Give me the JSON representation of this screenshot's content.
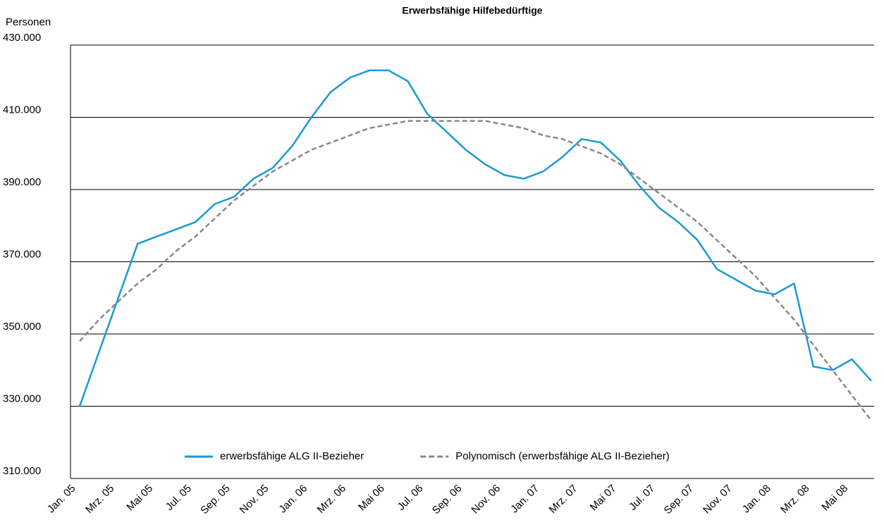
{
  "chart_data": {
    "type": "line",
    "title": "Erwerbsfähige Hilfebedürftige",
    "y_label": "Personen",
    "categories": [
      "Jan. 05",
      null,
      "Mrz. 05",
      null,
      "Mai 05",
      null,
      "Jul. 05",
      null,
      "Sep. 05",
      null,
      "Nov. 05",
      null,
      "Jan. 06",
      null,
      "Mrz. 06",
      null,
      "Mai 06",
      null,
      "Jul. 06",
      null,
      "Sep. 06",
      null,
      "Nov. 06",
      null,
      "Jan. 07",
      null,
      "Mrz. 07",
      null,
      "Mai 07",
      null,
      "Jul. 07",
      null,
      "Sep. 07",
      null,
      "Nov. 07",
      null,
      "Jan. 08",
      null,
      "Mrz. 08",
      null,
      "Mai 08",
      null
    ],
    "series": [
      {
        "name": "erwerbsfähige ALG II-Bezieher",
        "color": "#1a9ad6",
        "style": "solid",
        "values": [
          330000,
          345000,
          360000,
          375000,
          377000,
          379000,
          381000,
          386000,
          388000,
          393000,
          396000,
          402000,
          410000,
          417000,
          421000,
          423000,
          423000,
          420000,
          411000,
          406000,
          401000,
          397000,
          394000,
          393000,
          395000,
          399000,
          404000,
          403000,
          398000,
          391000,
          385000,
          381000,
          376000,
          368000,
          365000,
          362000,
          361000,
          364000,
          341000,
          340000,
          343000,
          337000
        ]
      },
      {
        "name": "Polynomisch (erwerbsfähige ALG II-Bezieher)",
        "color": "#888888",
        "style": "dashed",
        "values": [
          348000,
          354000,
          359000,
          364000,
          368000,
          373000,
          377000,
          382000,
          387000,
          391000,
          395000,
          398000,
          401000,
          403000,
          405000,
          407000,
          408000,
          409000,
          409000,
          409000,
          409000,
          409000,
          408000,
          407000,
          405000,
          404000,
          402000,
          400000,
          397000,
          393000,
          389000,
          385000,
          381000,
          376000,
          371000,
          366000,
          360000,
          354000,
          347000,
          340000,
          333000,
          326000
        ]
      }
    ],
    "ylim": [
      310000,
      430000
    ],
    "yticks": [
      {
        "value": 310000,
        "label": "310.000"
      },
      {
        "value": 330000,
        "label": "330.000"
      },
      {
        "value": 350000,
        "label": "350.000"
      },
      {
        "value": 370000,
        "label": "370.000"
      },
      {
        "value": 390000,
        "label": "390.000"
      },
      {
        "value": 410000,
        "label": "410.000"
      },
      {
        "value": 430000,
        "label": "430.000"
      }
    ],
    "grid": true,
    "legend": "bottom"
  }
}
